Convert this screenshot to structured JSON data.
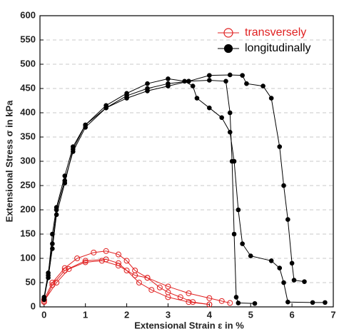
{
  "chart_data": {
    "type": "line",
    "x_label": "Extensional Strain ε in %",
    "y_label": "Extensional Stress σ in kPa",
    "xlim": [
      -0.1,
      7
    ],
    "xticks": [
      0,
      1,
      2,
      3,
      4,
      5,
      6,
      7
    ],
    "ylim": [
      0,
      600
    ],
    "yticks": [
      0,
      50,
      100,
      150,
      200,
      250,
      300,
      350,
      400,
      450,
      500,
      550,
      600
    ],
    "grid": true,
    "legend": "upper right",
    "series": [
      {
        "name": "transversely",
        "color": "#e02020",
        "marker": "open",
        "x": [
          0,
          0.2,
          0.5,
          0.8,
          1.2,
          1.5,
          1.8,
          2,
          2.2,
          2.5,
          2.8,
          3,
          3.3,
          3.6,
          4
        ],
        "values": [
          15,
          50,
          80,
          100,
          112,
          115,
          108,
          95,
          75,
          60,
          40,
          30,
          20,
          10,
          5
        ]
      },
      {
        "color": "#e02020",
        "marker": "open",
        "x": [
          0,
          0.2,
          0.5,
          1,
          1.5,
          1.8,
          2,
          2.3,
          2.6,
          3,
          3.5,
          4
        ],
        "values": [
          10,
          45,
          75,
          95,
          98,
          90,
          75,
          50,
          35,
          20,
          10,
          5
        ]
      },
      {
        "color": "#e02020",
        "marker": "open",
        "x": [
          0,
          0.3,
          0.6,
          1,
          1.4,
          1.8,
          2.2,
          2.5,
          3,
          3.5,
          4,
          4.3,
          4.5
        ],
        "values": [
          12,
          50,
          78,
          92,
          95,
          85,
          65,
          60,
          42,
          28,
          18,
          12,
          8
        ]
      },
      {
        "name": "longitudinally",
        "color": "#000000",
        "marker": "filled",
        "x": [
          0,
          0.1,
          0.2,
          0.3,
          0.5,
          0.7,
          1,
          1.5,
          2,
          2.5,
          3,
          3.5,
          4,
          4.4,
          4.5,
          4.55,
          4.6,
          4.65,
          4.7,
          5.1
        ],
        "values": [
          20,
          70,
          130,
          200,
          260,
          320,
          370,
          410,
          435,
          450,
          460,
          465,
          467,
          465,
          400,
          300,
          150,
          20,
          8,
          7
        ]
      },
      {
        "color": "#000000",
        "marker": "filled",
        "x": [
          0,
          0.1,
          0.2,
          0.3,
          0.5,
          0.7,
          1,
          1.5,
          2,
          2.5,
          3,
          3.4,
          3.6,
          3.7,
          4,
          4.3,
          4.5,
          4.6,
          4.7,
          4.8,
          5,
          5.5,
          5.7,
          5.8,
          5.9,
          6.5,
          6.8
        ],
        "values": [
          15,
          65,
          150,
          205,
          270,
          330,
          375,
          415,
          440,
          460,
          470,
          465,
          455,
          430,
          410,
          390,
          360,
          300,
          200,
          130,
          105,
          95,
          80,
          50,
          10,
          9,
          9
        ]
      },
      {
        "color": "#000000",
        "marker": "filled",
        "x": [
          0,
          0.1,
          0.2,
          0.3,
          0.5,
          0.7,
          1,
          1.5,
          2,
          2.5,
          3,
          3.5,
          4,
          4.5,
          4.8,
          4.9,
          5.3,
          5.5,
          5.7,
          5.8,
          5.9,
          6,
          6.05,
          6.3
        ],
        "values": [
          20,
          60,
          120,
          190,
          255,
          325,
          375,
          410,
          430,
          445,
          455,
          465,
          477,
          478,
          477,
          460,
          455,
          430,
          330,
          250,
          180,
          90,
          55,
          52
        ]
      }
    ]
  }
}
